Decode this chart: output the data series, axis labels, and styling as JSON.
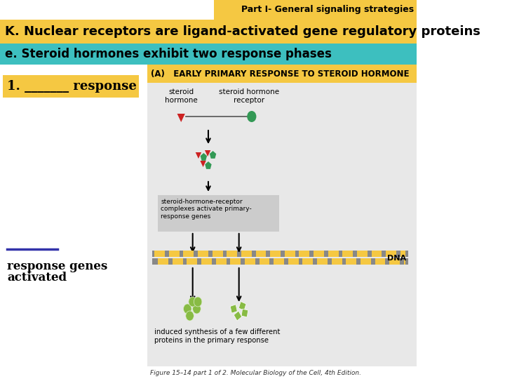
{
  "bg_color": "#ffffff",
  "header_bar_color": "#f5c842",
  "header_bar_text": "Part I- General signaling strategies",
  "header_bar_text_color": "#000000",
  "title_bar_color": "#f5c842",
  "title_bar_text": "K. Nuclear receptors are ligand-activated gene regulatory proteins",
  "title_bar_text_color": "#000000",
  "subtitle_bar_color": "#3dbfbf",
  "subtitle_bar_text": "e. Steroid hormones exhibit two response phases",
  "subtitle_bar_text_color": "#000000",
  "item1_bg": "#f5c842",
  "item1_text": "1. _______ response",
  "item2_line_color": "#3333aa",
  "item2_text1": "response genes",
  "item2_text2": "activated",
  "diagram_bg": "#e8e8e8",
  "diagram_title_bg": "#f5c842",
  "diagram_title_text": "(A)   EARLY PRIMARY RESPONSE TO STEROID HORMONE",
  "figure_caption": "Figure 15–14 part 1 of 2. Molecular Biology of the Cell, 4th Edition."
}
